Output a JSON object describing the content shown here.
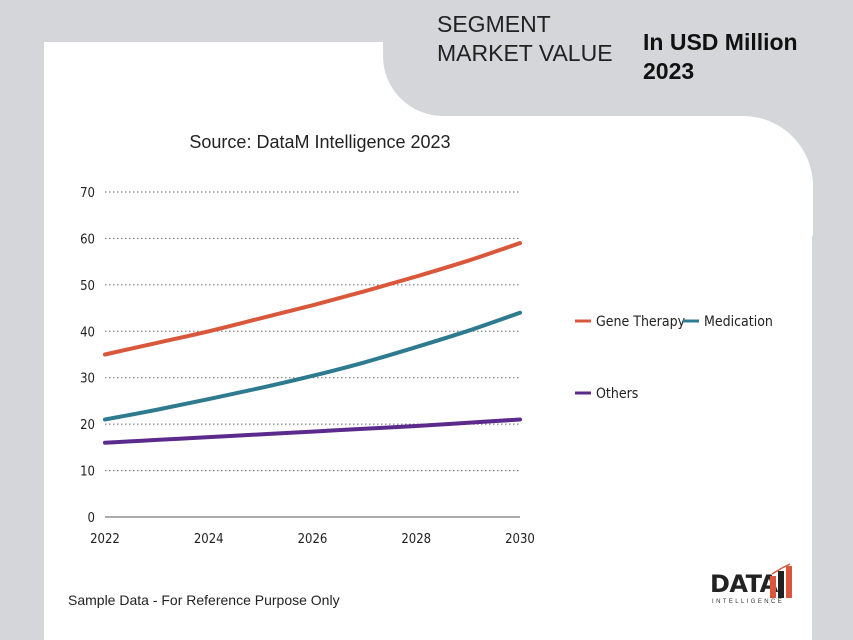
{
  "header": {
    "segment_title": "SEGMENT MARKET VALUE",
    "unit_label": "In USD Million 2023"
  },
  "footer": {
    "note": "Sample Data - For Reference Purpose Only"
  },
  "logo": {
    "text": "DATA",
    "subtitle": "INTELLIGENCE"
  },
  "colors": {
    "background": "#d4d6d9",
    "card": "#ffffff",
    "gene_therapy": "#d9573a",
    "medication": "#2e7a8f",
    "others": "#5c2a8c"
  },
  "chart_data": {
    "type": "line",
    "title": "Source: DataM Intelligence 2023",
    "xlabel": "",
    "ylabel": "",
    "x": [
      2022,
      2023,
      2024,
      2025,
      2026,
      2027,
      2028,
      2029,
      2030
    ],
    "x_ticks": [
      "2022",
      "2024",
      "2026",
      "2028",
      "2030"
    ],
    "y_ticks": [
      "0",
      "10",
      "20",
      "30",
      "40",
      "50",
      "60",
      "70"
    ],
    "ylim": [
      0,
      70
    ],
    "grid": "horizontal dotted",
    "legend_position": "right",
    "series": [
      {
        "name": "Gene Therapy",
        "color": "#d9573a",
        "values": [
          35,
          37.5,
          40,
          42.8,
          45.6,
          48.6,
          51.8,
          55.2,
          59
        ]
      },
      {
        "name": "Medication",
        "color": "#2e7a8f",
        "values": [
          21,
          23.1,
          25.4,
          27.8,
          30.4,
          33.3,
          36.6,
          40.1,
          44
        ]
      },
      {
        "name": "Others",
        "color": "#5c2a8c",
        "values": [
          16,
          16.6,
          17.2,
          17.8,
          18.4,
          19.0,
          19.6,
          20.3,
          21
        ]
      }
    ]
  }
}
